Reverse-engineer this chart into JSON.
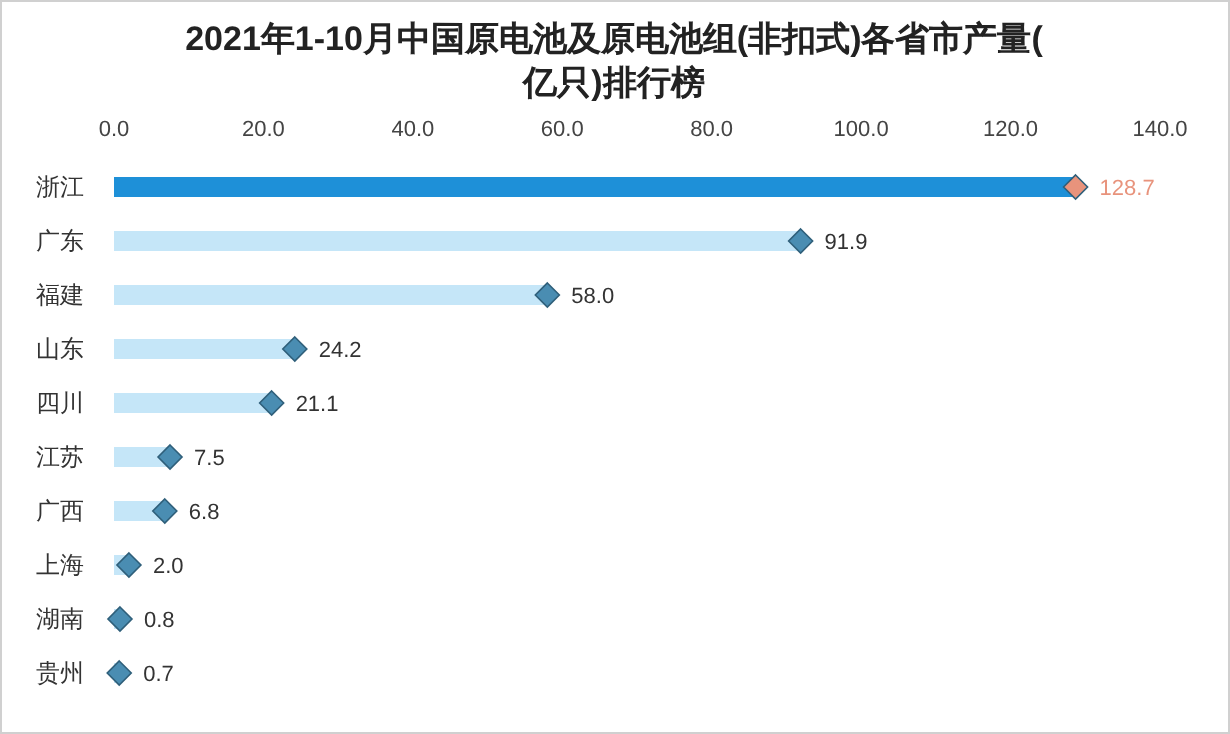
{
  "chart_data": {
    "type": "lollipop",
    "orientation": "horizontal",
    "title": "2021年1-10月中国原电池及原电池组(非扣式)各省市产量(亿只)排行榜",
    "categories": [
      "浙江",
      "广东",
      "福建",
      "山东",
      "四川",
      "江苏",
      "广西",
      "上海",
      "湖南",
      "贵州"
    ],
    "values": [
      128.7,
      91.9,
      58.0,
      24.2,
      21.1,
      7.5,
      6.8,
      2.0,
      0.8,
      0.7
    ],
    "colors": [
      "#e8937c",
      "#4a8db2",
      "#4a8db2",
      "#4a8db2",
      "#4a8db2",
      "#4a8db2",
      "#4a8db2",
      "#4a8db2",
      "#4a8db2",
      "#4a8db2"
    ],
    "value_labels": [
      "128.7",
      "91.9",
      "58.0",
      "24.2",
      "21.1",
      "7.5",
      "6.8",
      "2.0",
      "0.8",
      "0.7"
    ],
    "xlim": [
      0,
      140
    ],
    "xticks": [
      {
        "value": 0,
        "label": "0.0"
      },
      {
        "value": 20,
        "label": "20.0"
      },
      {
        "value": 40,
        "label": "40.0"
      },
      {
        "value": 60,
        "label": "60.0"
      },
      {
        "value": 80,
        "label": "80.0"
      },
      {
        "value": 100,
        "label": "100.0"
      },
      {
        "value": 120,
        "label": "120.0"
      },
      {
        "value": 140,
        "label": "140.0"
      }
    ],
    "marker": "diamond"
  }
}
